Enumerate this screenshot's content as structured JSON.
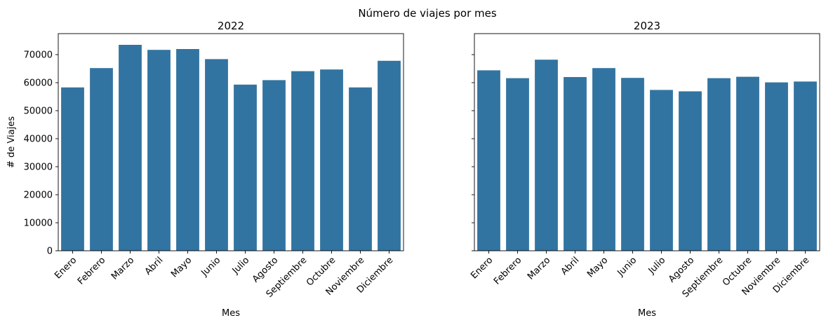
{
  "figure": {
    "suptitle": "Número de viajes por mes"
  },
  "colors": {
    "bar": "#3274a1",
    "axis": "#000000",
    "background": "#ffffff"
  },
  "chart_data": [
    {
      "type": "bar",
      "title": "2022",
      "xlabel": "Mes",
      "ylabel": "# de Viajes",
      "ylim": [
        0,
        77500
      ],
      "yticks": [
        0,
        10000,
        20000,
        30000,
        40000,
        50000,
        60000,
        70000
      ],
      "grid": false,
      "categories": [
        "Enero",
        "Febrero",
        "Marzo",
        "Abril",
        "Mayo",
        "Junio",
        "Julio",
        "Agosto",
        "Septiembre",
        "Octubre",
        "Noviembre",
        "Diciembre"
      ],
      "values": [
        58300,
        65200,
        73500,
        71700,
        72000,
        68400,
        59300,
        60900,
        64100,
        64700,
        58300,
        67800
      ]
    },
    {
      "type": "bar",
      "title": "2023",
      "xlabel": "Mes",
      "ylabel": "",
      "ylim": [
        0,
        77500
      ],
      "yticks": [
        0,
        10000,
        20000,
        30000,
        40000,
        50000,
        60000,
        70000
      ],
      "shared_y": true,
      "grid": false,
      "categories": [
        "Enero",
        "Febrero",
        "Marzo",
        "Abril",
        "Mayo",
        "Junio",
        "Julio",
        "Agosto",
        "Septiembre",
        "Octubre",
        "Noviembre",
        "Diciembre"
      ],
      "values": [
        64400,
        61600,
        68200,
        62000,
        65200,
        61700,
        57400,
        56900,
        61600,
        62100,
        60100,
        60400
      ]
    }
  ]
}
